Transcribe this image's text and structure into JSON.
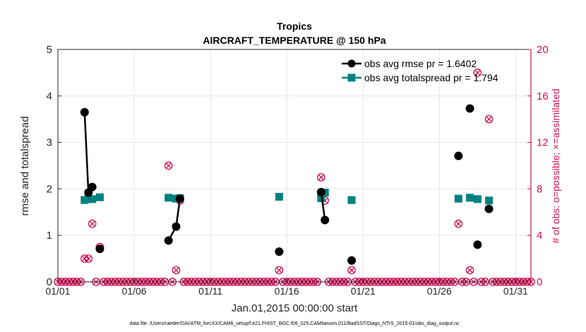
{
  "chart_data": {
    "type": "line",
    "title": "Tropics",
    "subtitle": "AIRCRAFT_TEMPERATURE @ 150 hPa",
    "xlabel": "Jan.01,2015 00:00:00 start",
    "ylabel": "rmse and totalspread",
    "ylabel_right": "# of obs: o=possible; ×=assimilated",
    "footer": "data file: /Users/raeder/DAI/ATM_forcXX/CAM6_setup/f.e21.FHIST_BGC.f09_025.CAM6assim.011/BadSST/Diags_NTrS_2015-01/obs_diag_output.nc",
    "xlim": [
      1,
      32
    ],
    "ylim": [
      0,
      5
    ],
    "ylim_right": [
      0,
      20
    ],
    "x_ticks": [
      1,
      6,
      11,
      16,
      21,
      26,
      31
    ],
    "x_tick_labels": [
      "01/01",
      "01/06",
      "01/11",
      "01/16",
      "01/21",
      "01/26",
      "01/31"
    ],
    "y_ticks": [
      "0",
      "1",
      "2",
      "3",
      "4",
      "5"
    ],
    "y_right_ticks": [
      "0",
      "4",
      "8",
      "12",
      "16",
      "20"
    ],
    "grid": true,
    "legend_position": "top-right",
    "colors": {
      "rmse": "#000000",
      "spread": "#008080",
      "obs": "#cc1155"
    },
    "series": [
      {
        "name": "obs avg rmse pr = 1.6402",
        "axis": "left",
        "segments": [
          [
            [
              2.75,
              3.65
            ],
            [
              3.0,
              1.92
            ],
            [
              3.25,
              2.04
            ]
          ],
          [
            [
              3.75,
              0.71
            ]
          ],
          [
            [
              8.25,
              0.89
            ],
            [
              8.75,
              1.19
            ],
            [
              9.0,
              1.79
            ]
          ],
          [
            [
              15.5,
              0.65
            ]
          ],
          [
            [
              18.25,
              1.93
            ],
            [
              18.5,
              1.33
            ]
          ],
          [
            [
              20.25,
              0.46
            ]
          ],
          [
            [
              27.25,
              2.71
            ]
          ],
          [
            [
              28.0,
              3.73
            ]
          ],
          [
            [
              28.5,
              0.8
            ]
          ],
          [
            [
              29.25,
              1.57
            ]
          ]
        ]
      },
      {
        "name": "obs avg totalspread pr = 1.794",
        "axis": "left",
        "segments": [
          [
            [
              2.75,
              1.76
            ],
            [
              3.0,
              1.78
            ],
            [
              3.25,
              1.78
            ]
          ],
          [
            [
              3.75,
              1.82
            ]
          ],
          [
            [
              8.25,
              1.81
            ],
            [
              8.75,
              1.79
            ],
            [
              9.0,
              1.8
            ]
          ],
          [
            [
              15.5,
              1.83
            ]
          ],
          [
            [
              18.25,
              1.8
            ],
            [
              18.5,
              1.92
            ]
          ],
          [
            [
              20.25,
              1.76
            ]
          ],
          [
            [
              27.25,
              1.79
            ]
          ],
          [
            [
              28.0,
              1.81
            ]
          ],
          [
            [
              28.5,
              1.78
            ]
          ],
          [
            [
              29.25,
              1.75
            ]
          ]
        ]
      },
      {
        "name": "# of obs possible",
        "axis": "right",
        "points": [
          [
            2.75,
            2
          ],
          [
            3.0,
            2
          ],
          [
            3.25,
            5
          ],
          [
            3.75,
            3
          ],
          [
            8.25,
            10
          ],
          [
            8.75,
            1
          ],
          [
            9.0,
            7
          ],
          [
            15.5,
            1
          ],
          [
            18.25,
            9
          ],
          [
            18.5,
            7
          ],
          [
            20.25,
            1
          ],
          [
            27.25,
            5
          ],
          [
            28.0,
            1
          ],
          [
            28.5,
            18
          ],
          [
            29.25,
            14
          ]
        ]
      }
    ]
  }
}
